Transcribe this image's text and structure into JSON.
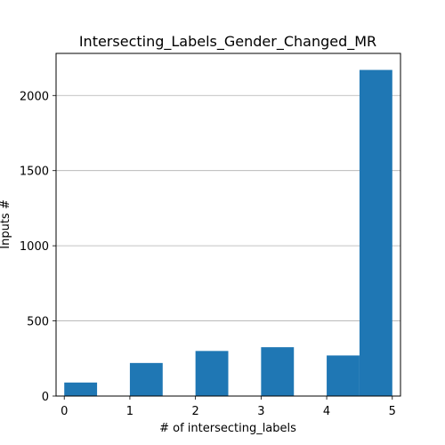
{
  "chart_data": {
    "type": "bar",
    "title": "Intersecting_Labels_Gender_Changed_MR",
    "xlabel": "# of intersecting_labels",
    "ylabel": "Inputs #",
    "xlim": [
      -0.125,
      5.125
    ],
    "ylim": [
      0,
      2280
    ],
    "xticks": [
      0,
      1,
      2,
      3,
      4,
      5
    ],
    "yticks": [
      0,
      500,
      1000,
      1500,
      2000
    ],
    "grid": "y",
    "bin_width": 0.5,
    "bars": [
      {
        "x_start": 0.0,
        "x_end": 0.5,
        "value": 90
      },
      {
        "x_start": 0.5,
        "x_end": 1.0,
        "value": 0
      },
      {
        "x_start": 1.0,
        "x_end": 1.5,
        "value": 220
      },
      {
        "x_start": 1.5,
        "x_end": 2.0,
        "value": 0
      },
      {
        "x_start": 2.0,
        "x_end": 2.5,
        "value": 300
      },
      {
        "x_start": 2.5,
        "x_end": 3.0,
        "value": 0
      },
      {
        "x_start": 3.0,
        "x_end": 3.5,
        "value": 325
      },
      {
        "x_start": 3.5,
        "x_end": 4.0,
        "value": 0
      },
      {
        "x_start": 4.0,
        "x_end": 4.5,
        "value": 270
      },
      {
        "x_start": 4.5,
        "x_end": 5.0,
        "value": 2170
      }
    ],
    "bar_color": "#1f77b4",
    "grid_color": "#b0b0b0"
  }
}
